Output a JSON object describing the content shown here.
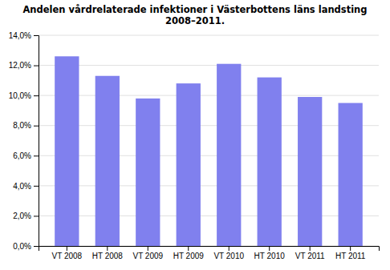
{
  "chart_data": {
    "type": "bar",
    "title": "Andelen vårdrelaterade infektioner i Västerbottens läns landsting\n2008–2011.",
    "categories": [
      "VT 2008",
      "HT 2008",
      "VT 2009",
      "HT 2009",
      "VT 2010",
      "HT 2010",
      "VT 2011",
      "HT 2011"
    ],
    "values": [
      0.126,
      0.113,
      0.098,
      0.108,
      0.121,
      0.112,
      0.099,
      0.095
    ],
    "color": "#8080EE",
    "ylim": [
      0,
      0.14
    ],
    "yticks": [
      {
        "value": 0,
        "label": "0,0%"
      },
      {
        "value": 0.02,
        "label": "2,0%"
      },
      {
        "value": 0.04,
        "label": "4,0%"
      },
      {
        "value": 0.06,
        "label": "6,0%"
      },
      {
        "value": 0.08,
        "label": "8,0%"
      },
      {
        "value": 0.1,
        "label": "10,0%"
      },
      {
        "value": 0.12,
        "label": "12,0%"
      },
      {
        "value": 0.14,
        "label": "14,0%"
      }
    ],
    "grid": true
  }
}
